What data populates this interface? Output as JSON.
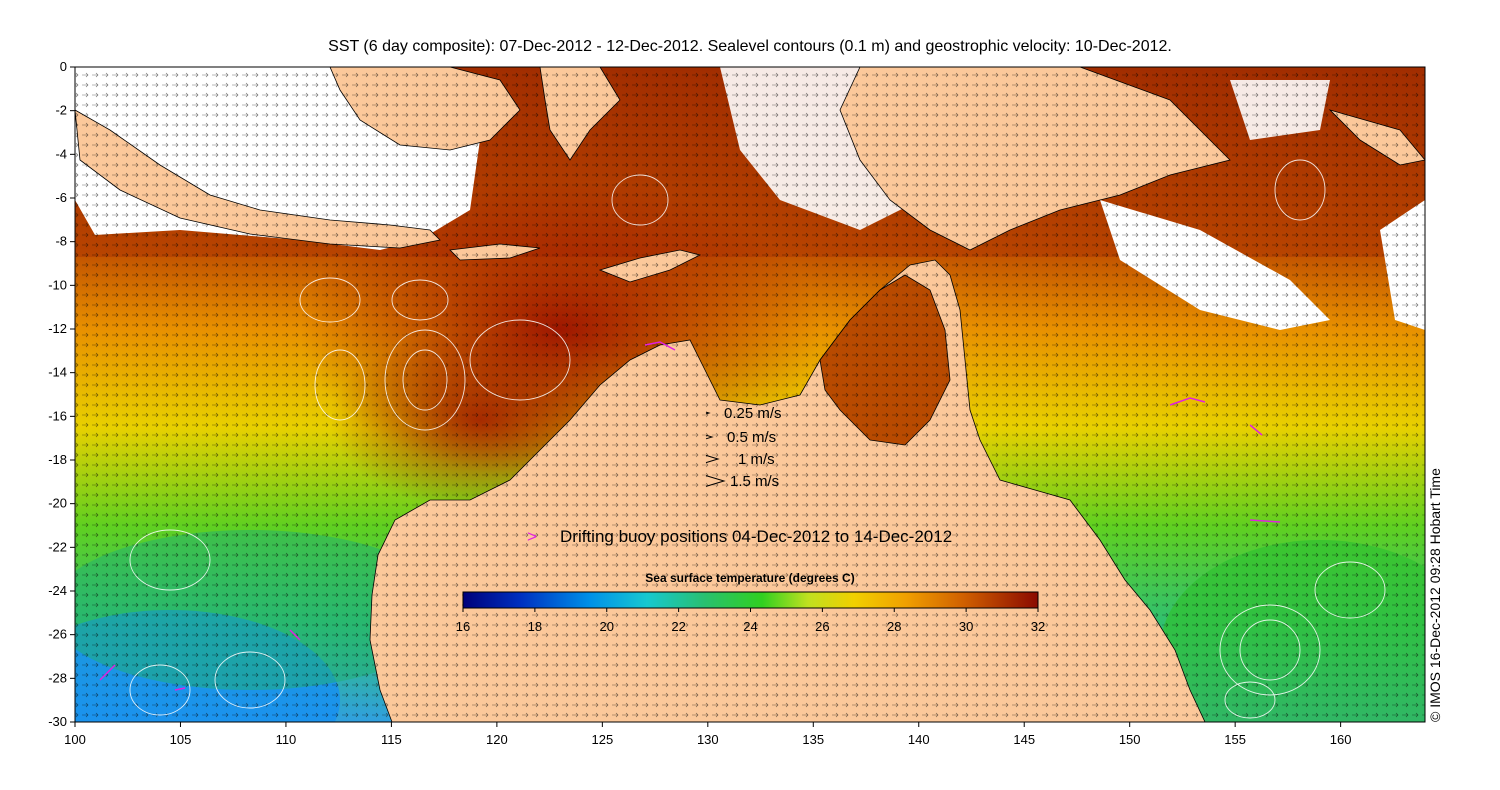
{
  "title": "SST (6 day composite): 07-Dec-2012 - 12-Dec-2012. Sealevel contours (0.1 m) and geostrophic velocity: 10-Dec-2012.",
  "axes": {
    "x_ticks": [
      "100",
      "105",
      "110",
      "115",
      "120",
      "125",
      "130",
      "135",
      "140",
      "145",
      "150",
      "155",
      "160"
    ],
    "y_ticks": [
      "0",
      "-2",
      "-4",
      "-6",
      "-8",
      "-10",
      "-12",
      "-14",
      "-16",
      "-18",
      "-20",
      "-22",
      "-24",
      "-26",
      "-28",
      "-30"
    ],
    "lon_range": [
      100,
      164
    ],
    "lat_range": [
      -30,
      0
    ]
  },
  "velocity_legend": [
    "0.25 m/s",
    "0.5 m/s",
    "1 m/s",
    "1.5 m/s"
  ],
  "buoy_legend": {
    "marker": ">",
    "label": "Drifting buoy positions 04-Dec-2012 to 14-Dec-2012",
    "color": "#e020e0"
  },
  "colorbar": {
    "title": "Sea surface temperature (degrees C)",
    "ticks": [
      "16",
      "18",
      "20",
      "22",
      "24",
      "26",
      "28",
      "30",
      "32"
    ],
    "range": [
      16,
      32
    ]
  },
  "credit": "© IMOS 16-Dec-2012 09:28 Hobart Time",
  "colors": {
    "land": "#fcc89a",
    "cloud": "#ffffff",
    "contour": "#ffffff",
    "vector": "#000000"
  }
}
